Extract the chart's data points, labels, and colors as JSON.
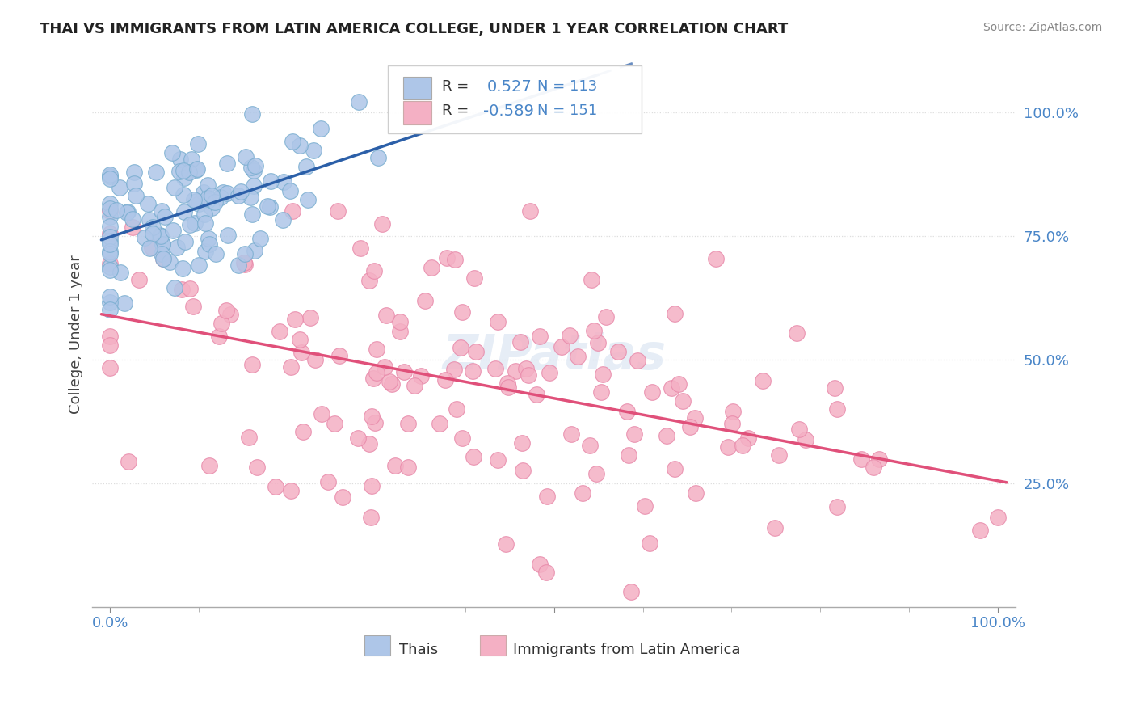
{
  "title": "THAI VS IMMIGRANTS FROM LATIN AMERICA COLLEGE, UNDER 1 YEAR CORRELATION CHART",
  "source": "Source: ZipAtlas.com",
  "ylabel": "College, Under 1 year",
  "thai_color": "#aec6e8",
  "thai_edge_color": "#7aaed0",
  "thai_line_color": "#2b5fa8",
  "latin_color": "#f4b0c4",
  "latin_edge_color": "#e88aaa",
  "latin_line_color": "#e0507a",
  "r_thai": 0.527,
  "n_thai": 113,
  "r_latin": -0.589,
  "n_latin": 151,
  "watermark": "ZIPatlas",
  "background_color": "#ffffff",
  "grid_color": "#dddddd",
  "title_color": "#222222",
  "source_color": "#888888",
  "tick_color": "#4a86c8",
  "label_color": "#444444"
}
